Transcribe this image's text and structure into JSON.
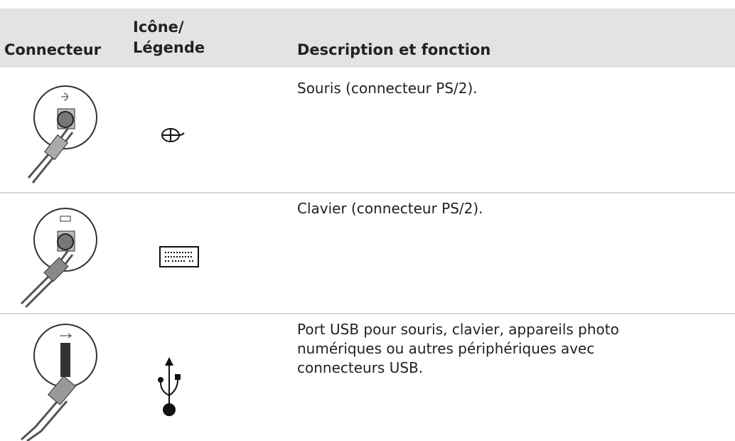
{
  "table": {
    "headers": [
      "Connecteur",
      "Icône/ Légende",
      "Description et fonction"
    ],
    "rows": [
      [
        "Souris (connecteur PS/2)."
      ],
      [
        "Clavier (connecteur PS/2)."
      ],
      [
        "Port USB pour souris, clavier, appareils photo numériques ou autres périphériques avec connecteurs USB."
      ]
    ]
  }
}
